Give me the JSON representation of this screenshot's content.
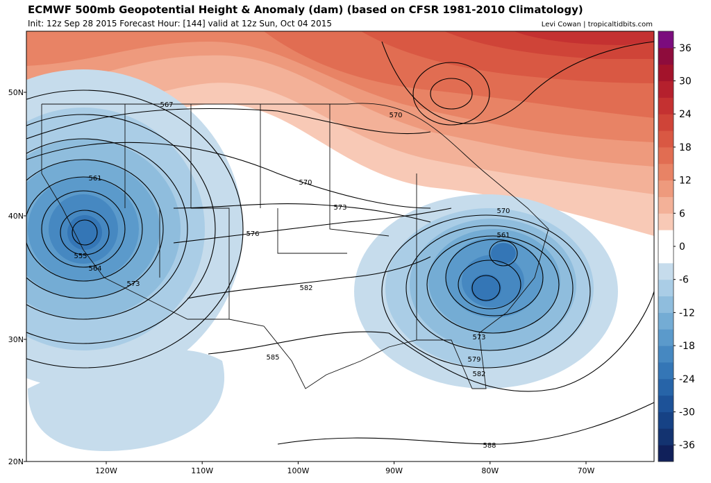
{
  "header": {
    "title": "ECMWF 500mb Geopotential Height & Anomaly (dam) (based on CFSR 1981-2010 Climatology)",
    "subtitle": "Init: 12z Sep 28 2015   Forecast Hour: [144]   valid at 12z Sun, Oct 04 2015",
    "credit": "Levi Cowan | tropicaltidbits.com"
  },
  "map": {
    "lat_labels": [
      "50N",
      "40N",
      "30N",
      "20N"
    ],
    "lon_labels": [
      "120W",
      "110W",
      "100W",
      "90W",
      "80W",
      "70W"
    ],
    "contour_labels": [
      "567",
      "570",
      "561",
      "555",
      "564",
      "573",
      "570",
      "573",
      "576",
      "582",
      "585",
      "570",
      "561",
      "573",
      "579",
      "582",
      "588"
    ]
  },
  "colorbar": {
    "range": [
      -39,
      39
    ],
    "ticks": [
      36,
      30,
      24,
      18,
      12,
      6,
      0,
      -6,
      -12,
      -18,
      -24,
      -30,
      -36
    ],
    "colors": [
      "#10205a",
      "#133370",
      "#164285",
      "#1d5298",
      "#2764a8",
      "#3476b6",
      "#4688c1",
      "#5b9acb",
      "#74acd4",
      "#8fbddd",
      "#aacde6",
      "#c6dcec",
      "#ffffff",
      "#ffffff",
      "#f8c9b6",
      "#f3b198",
      "#ee9a7d",
      "#e88365",
      "#e16d52",
      "#d95843",
      "#cf4438",
      "#c43131",
      "#b5202d",
      "#a3132b",
      "#8e0c3c",
      "#7b0c7d"
    ]
  }
}
